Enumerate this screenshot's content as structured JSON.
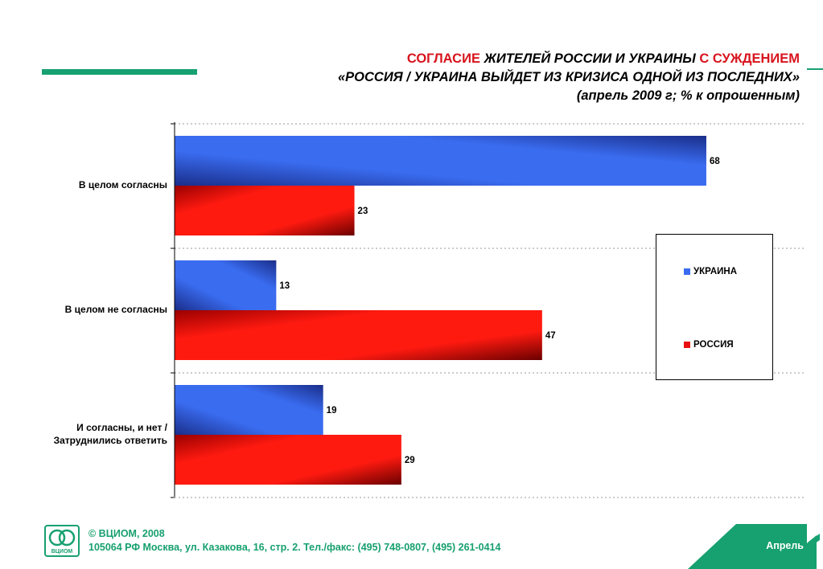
{
  "header": {
    "title_line1_red_a": "СОГЛАСИЕ",
    "title_line1_mid": "ЖИТЕЛЕЙ РОССИИ И УКРАИНЫ",
    "title_line1_red_b": "С СУЖДЕНИЕМ",
    "title_line2": "«РОССИЯ / УКРАИНА ВЫЙДЕТ ИЗ КРИЗИСА ОДНОЙ ИЗ ПОСЛЕДНИХ»",
    "title_line3": "(апрель 2009 г; % к опрошенным)"
  },
  "chart_data": {
    "type": "bar",
    "orientation": "horizontal",
    "categories": [
      "В целом согласны",
      "В целом не согласны",
      "И согласны, и нет / Затруднились ответить"
    ],
    "category_lines": [
      [
        "В целом согласны"
      ],
      [
        "В целом не согласны"
      ],
      [
        "И согласны, и нет /",
        "Затруднились ответить"
      ]
    ],
    "series": [
      {
        "name": "УКРАИНА",
        "values": [
          68,
          13,
          19
        ],
        "color": "#3a6cf0"
      },
      {
        "name": "РОССИЯ",
        "values": [
          23,
          47,
          29
        ],
        "color": "#e81010"
      }
    ],
    "xlim": [
      0,
      80
    ],
    "data_labels": true,
    "grid": true,
    "legend_position": "right"
  },
  "footer": {
    "copyright": "© ВЦИОМ, 2008",
    "address": "105064 РФ Москва, ул. Казакова, 16, стр. 2.  Тел./факс: (495) 748-0807, (495) 261-0414",
    "logo_text": "ВЦИОМ",
    "corner_label": "Апрель"
  },
  "colors": {
    "accent_green": "#17a070",
    "title_red": "#d8141e"
  }
}
